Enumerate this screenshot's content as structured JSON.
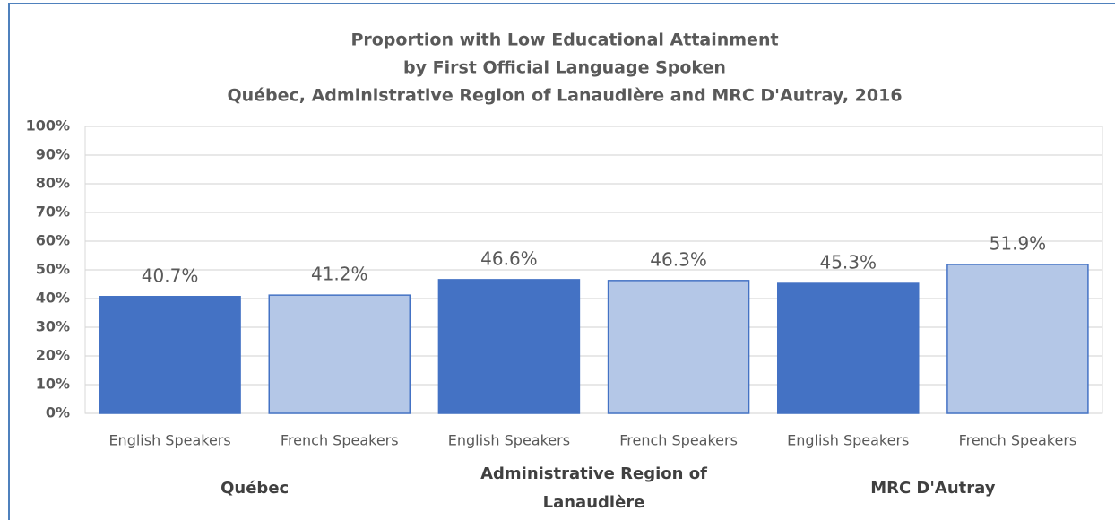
{
  "chart_data": {
    "type": "bar",
    "title": [
      "Proportion with Low Educational Attainment",
      "by First Official Language Spoken",
      "Québec, Administrative Region of Lanaudière and MRC D'Autray, 2016"
    ],
    "categories": [
      "English Speakers",
      "French Speakers",
      "English Speakers",
      "French Speakers",
      "English Speakers",
      "French Speakers"
    ],
    "groups": [
      "Québec",
      "Administrative Region of Lanaudière",
      "MRC D'Autray"
    ],
    "values": [
      40.7,
      41.2,
      46.6,
      46.3,
      45.3,
      51.9
    ],
    "value_labels": [
      "40.7%",
      "41.2%",
      "46.6%",
      "46.3%",
      "45.3%",
      "51.9%"
    ],
    "colors": [
      "#4472c4",
      "#b4c7e7",
      "#4472c4",
      "#b4c7e7",
      "#4472c4",
      "#b4c7e7"
    ],
    "ylim": [
      0,
      100
    ],
    "yticks": [
      {
        "value": 0,
        "label": "0%"
      },
      {
        "value": 10,
        "label": "10%"
      },
      {
        "value": 20,
        "label": "20%"
      },
      {
        "value": 30,
        "label": "30%"
      },
      {
        "value": 40,
        "label": "40%"
      },
      {
        "value": 50,
        "label": "50%"
      },
      {
        "value": 60,
        "label": "60%"
      },
      {
        "value": 70,
        "label": "70%"
      },
      {
        "value": 80,
        "label": "80%"
      },
      {
        "value": 90,
        "label": "90%"
      },
      {
        "value": 100,
        "label": "100%"
      }
    ],
    "grid": true
  }
}
